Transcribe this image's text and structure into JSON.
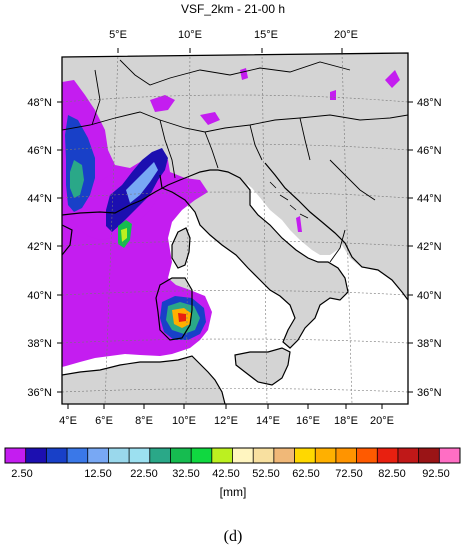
{
  "figure": {
    "title": "VSF_2km - 21-00 h",
    "panel_label": "(d)"
  },
  "map": {
    "region": "Italy and western Mediterranean",
    "projection": "Lambert conformal",
    "top_longitude_labels": [
      "5°E",
      "10°E",
      "15°E",
      "20°E"
    ],
    "bottom_longitude_labels": [
      "4°E",
      "6°E",
      "8°E",
      "10°E",
      "12°E",
      "14°E",
      "16°E",
      "18°E",
      "20°E"
    ],
    "left_latitude_labels": [
      "48°N",
      "46°N",
      "44°N",
      "42°N",
      "40°N",
      "38°N",
      "36°N"
    ],
    "right_latitude_labels": [
      "48°N",
      "46°N",
      "44°N",
      "42°N",
      "40°N",
      "38°N",
      "36°N"
    ],
    "land_color": "#d4d4d4",
    "sea_color": "#ffffff",
    "precip_areas": [
      "Gulf of Lion and Provence",
      "Ligurian Sea",
      "Corsica",
      "Tyrrhenian Sea",
      "Southern Sardinia",
      "Sardinia Channel"
    ],
    "precip_max_area": "Southern Sardinia"
  },
  "colorbar": {
    "unit_label": "[mm]",
    "tick_labels": [
      "2.50",
      "12.50",
      "22.50",
      "32.50",
      "42.50",
      "52.50",
      "62.50",
      "72.50",
      "82.50",
      "92.50"
    ],
    "colors": [
      "#c41df0",
      "#1c0fb0",
      "#1840c8",
      "#3a78e8",
      "#78a8f4",
      "#9ad8ec",
      "#9ce0f0",
      "#2aa888",
      "#16bc50",
      "#10d840",
      "#bcf020",
      "#fff5c0",
      "#f8e0a0",
      "#f0b878",
      "#ffd800",
      "#ffb000",
      "#ff9400",
      "#ff5a00",
      "#e82010",
      "#c01818",
      "#9a1416",
      "#ff6ec4"
    ]
  }
}
